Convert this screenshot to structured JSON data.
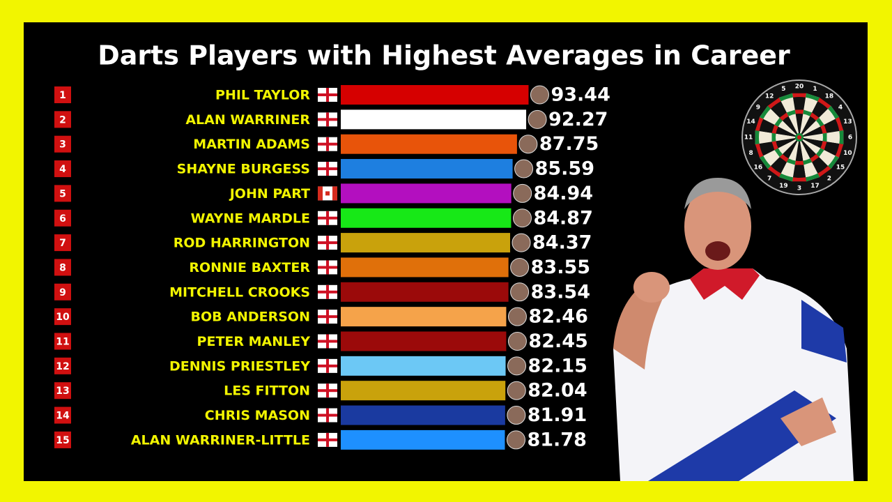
{
  "chart_data": {
    "type": "bar",
    "orientation": "horizontal",
    "title": "Darts Players with Highest Averages in Career",
    "ranks": [
      1,
      2,
      3,
      4,
      5,
      6,
      7,
      8,
      9,
      10,
      11,
      12,
      13,
      14,
      15
    ],
    "categories": [
      "PHIL TAYLOR",
      "ALAN WARRINER",
      "MARTIN ADAMS",
      "SHAYNE BURGESS",
      "JOHN PART",
      "WAYNE MARDLE",
      "ROD HARRINGTON",
      "RONNIE BAXTER",
      "MITCHELL CROOKS",
      "BOB ANDERSON",
      "PETER MANLEY",
      "DENNIS PRIESTLEY",
      "LES FITTON",
      "CHRIS MASON",
      "ALAN WARRINER-LITTLE"
    ],
    "values": [
      93.44,
      92.27,
      87.75,
      85.59,
      84.94,
      84.87,
      84.37,
      83.55,
      83.54,
      82.46,
      82.45,
      82.15,
      82.04,
      81.91,
      81.78
    ],
    "colors": [
      "#d60000",
      "#ffffff",
      "#e8540a",
      "#1e7fe0",
      "#b30fbf",
      "#17e817",
      "#c9a20c",
      "#e0700a",
      "#9b0a0a",
      "#f5a34a",
      "#9b0a0a",
      "#6cc8f5",
      "#c9a20c",
      "#1a3aa0",
      "#1e90ff"
    ],
    "xlim": [
      0,
      100
    ],
    "dartboard_numbers": [
      20,
      1,
      18,
      4,
      13,
      6,
      10,
      15,
      2,
      17,
      3,
      19,
      7,
      16,
      8,
      11,
      14,
      9,
      12,
      5
    ]
  }
}
